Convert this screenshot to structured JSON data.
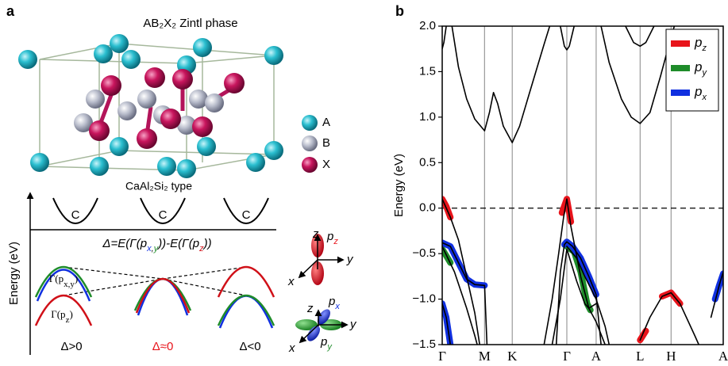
{
  "panel_a": {
    "label": "a",
    "title": "AB₂X₂ Zintl phase",
    "structure_type": "CaAl₂Si₂ type",
    "legend": [
      "A",
      "B",
      "X"
    ],
    "cone_labels": [
      "C",
      "C",
      "C"
    ],
    "ylabel": "Energy (eV)",
    "formula": [
      "Δ=E(Γ(p",
      "x",
      ",",
      "y",
      "))-E(Γ(p",
      "z",
      "))"
    ],
    "gamma_xy": [
      "Γ(p",
      "x,y",
      ")"
    ],
    "gamma_z": [
      "Γ(p",
      "z",
      ")"
    ],
    "cases": [
      "Δ>0",
      "Δ≈0",
      "Δ<0"
    ],
    "orbital_z": {
      "axes": [
        "z",
        "y",
        "x"
      ],
      "label": [
        "p",
        "z"
      ]
    },
    "orbital_xy": {
      "axes": [
        "z",
        "y",
        "x"
      ],
      "label_x": [
        "p",
        "x"
      ],
      "label_y": [
        "p",
        "y"
      ]
    }
  },
  "chart_data": {
    "type": "line",
    "label": "b",
    "ylabel": "Energy (eV)",
    "xlim": [
      0,
      3.45
    ],
    "ylim": [
      -1.5,
      2.0
    ],
    "xticks": [
      {
        "value": 0,
        "label": "Γ"
      },
      {
        "value": 0.52,
        "label": "M"
      },
      {
        "value": 0.86,
        "label": "K"
      },
      {
        "value": 1.53,
        "label": "Γ"
      },
      {
        "value": 1.89,
        "label": "A"
      },
      {
        "value": 2.43,
        "label": "L"
      },
      {
        "value": 2.81,
        "label": "H"
      },
      {
        "value": 3.45,
        "label": "A"
      }
    ],
    "yticks": [
      {
        "value": -1.5,
        "label": "−1.5"
      },
      {
        "value": -1.0,
        "label": "−1.0"
      },
      {
        "value": -0.5,
        "label": "−0.5"
      },
      {
        "value": 0,
        "label": "0.0"
      },
      {
        "value": 0.5,
        "label": "0.5"
      },
      {
        "value": 1.0,
        "label": "1.0"
      },
      {
        "value": 1.5,
        "label": "1.5"
      },
      {
        "value": 2.0,
        "label": "2.0"
      }
    ],
    "grid": "x",
    "reference_line": 0,
    "legend": "upper right",
    "series": [
      {
        "name": "pz",
        "color": "#e8141b",
        "fat": true,
        "x": [
          0,
          0.05,
          0.1,
          null,
          1.47,
          1.53,
          1.58,
          null,
          2.43,
          2.5,
          null,
          2.7,
          2.81,
          2.92
        ],
        "values": [
          0.1,
          0.02,
          -0.1,
          null,
          -0.05,
          0.1,
          -0.15,
          null,
          -1.45,
          -1.35,
          null,
          -0.97,
          -0.93,
          -1.05
        ]
      },
      {
        "name": "py",
        "color": "#1e8c2a",
        "fat": true,
        "x": [
          0,
          0.1,
          null,
          1.53,
          1.62,
          1.7,
          1.78,
          1.82
        ],
        "values": [
          -0.45,
          -0.6,
          null,
          -0.42,
          -0.48,
          -0.7,
          -1.05,
          -1.12
        ]
      },
      {
        "name": "px",
        "color": "#1030e0",
        "fat": true,
        "x": [
          0,
          0.1,
          0.2,
          0.3,
          0.4,
          0.52,
          null,
          0,
          0.05,
          0.1,
          null,
          1.5,
          1.53,
          1.6,
          1.7,
          1.8,
          1.89,
          null,
          3.35,
          3.4,
          3.45
        ],
        "values": [
          -0.38,
          -0.42,
          -0.6,
          -0.78,
          -0.84,
          -0.85,
          null,
          -1.05,
          -1.2,
          -1.5,
          null,
          -0.4,
          -0.37,
          -0.42,
          -0.55,
          -0.75,
          -0.95,
          null,
          -1.0,
          -0.85,
          -0.72
        ]
      },
      {
        "color": "#000000",
        "x": [
          0.12,
          0.2,
          0.3,
          0.4,
          0.52,
          0.58,
          0.63,
          0.68,
          0.75,
          0.86,
          0.95,
          1.05,
          1.15,
          1.25,
          1.32,
          null,
          1.95,
          2.05,
          2.2,
          2.32,
          2.43,
          2.55,
          2.68,
          2.8,
          2.85
        ],
        "values": [
          2.0,
          1.55,
          1.2,
          0.98,
          0.85,
          1.05,
          1.27,
          1.15,
          0.9,
          0.72,
          0.9,
          1.2,
          1.5,
          1.8,
          2.0,
          null,
          2.0,
          1.6,
          1.2,
          1.0,
          0.93,
          1.05,
          1.45,
          1.85,
          2.0
        ]
      },
      {
        "color": "#000000",
        "x": [
          0,
          0.02,
          0.05,
          null,
          1.45,
          1.5,
          1.53,
          1.56,
          1.62,
          null,
          2.25,
          2.35,
          2.43,
          2.5,
          2.6
        ],
        "values": [
          1.75,
          1.82,
          2.0,
          null,
          2.0,
          1.78,
          1.74,
          1.78,
          2.0,
          null,
          2.0,
          1.82,
          1.78,
          1.82,
          2.0
        ]
      },
      {
        "color": "#000000",
        "x": [
          0,
          0.1,
          0.2,
          0.3,
          0.4,
          0.46,
          null,
          1.25,
          1.35,
          1.43,
          1.49,
          1.53,
          1.58,
          1.7,
          1.8,
          1.89,
          2.0,
          null,
          2.43,
          2.55,
          2.7,
          2.81,
          2.92,
          3.1,
          3.15,
          null,
          3.3,
          3.4,
          3.45
        ],
        "values": [
          0.1,
          -0.1,
          -0.35,
          -0.75,
          -1.15,
          -1.5,
          null,
          -1.5,
          -1.0,
          -0.5,
          -0.1,
          0.1,
          -0.2,
          -0.75,
          -1.1,
          -1.25,
          -1.5,
          null,
          -1.45,
          -1.2,
          -0.97,
          -0.93,
          -1.05,
          -1.4,
          -1.5,
          null,
          -1.2,
          -0.85,
          -0.7
        ]
      },
      {
        "color": "#000000",
        "x": [
          0,
          0.1,
          0.2,
          0.3,
          0.4,
          0.52,
          0.55,
          null,
          1.4,
          1.45,
          1.5,
          1.53,
          1.6,
          1.7,
          1.8,
          1.89,
          1.95
        ],
        "values": [
          -0.38,
          -0.42,
          -0.6,
          -0.78,
          -0.84,
          -0.85,
          -1.5,
          null,
          -1.5,
          -0.7,
          -0.4,
          -0.37,
          -0.42,
          -0.55,
          -0.75,
          -0.95,
          -1.5
        ]
      },
      {
        "color": "#000000",
        "x": [
          0,
          0.15,
          0.3,
          0.4,
          0.43,
          null,
          1.53,
          1.65,
          1.75,
          1.89,
          2.0,
          2.05
        ],
        "values": [
          -0.42,
          -0.7,
          -1.1,
          -1.4,
          -1.5,
          null,
          -0.42,
          -0.55,
          -0.75,
          -1.0,
          -1.3,
          -1.5
        ]
      },
      {
        "color": "#000000",
        "x": [
          0,
          0.05,
          0.1,
          null,
          1.35,
          1.45,
          1.53,
          1.65,
          1.75,
          1.8,
          1.89
        ],
        "values": [
          -1.05,
          -1.2,
          -1.5,
          null,
          -1.5,
          -1.0,
          -0.45,
          -0.8,
          -1.05,
          -1.1,
          -1.05
        ]
      }
    ]
  }
}
